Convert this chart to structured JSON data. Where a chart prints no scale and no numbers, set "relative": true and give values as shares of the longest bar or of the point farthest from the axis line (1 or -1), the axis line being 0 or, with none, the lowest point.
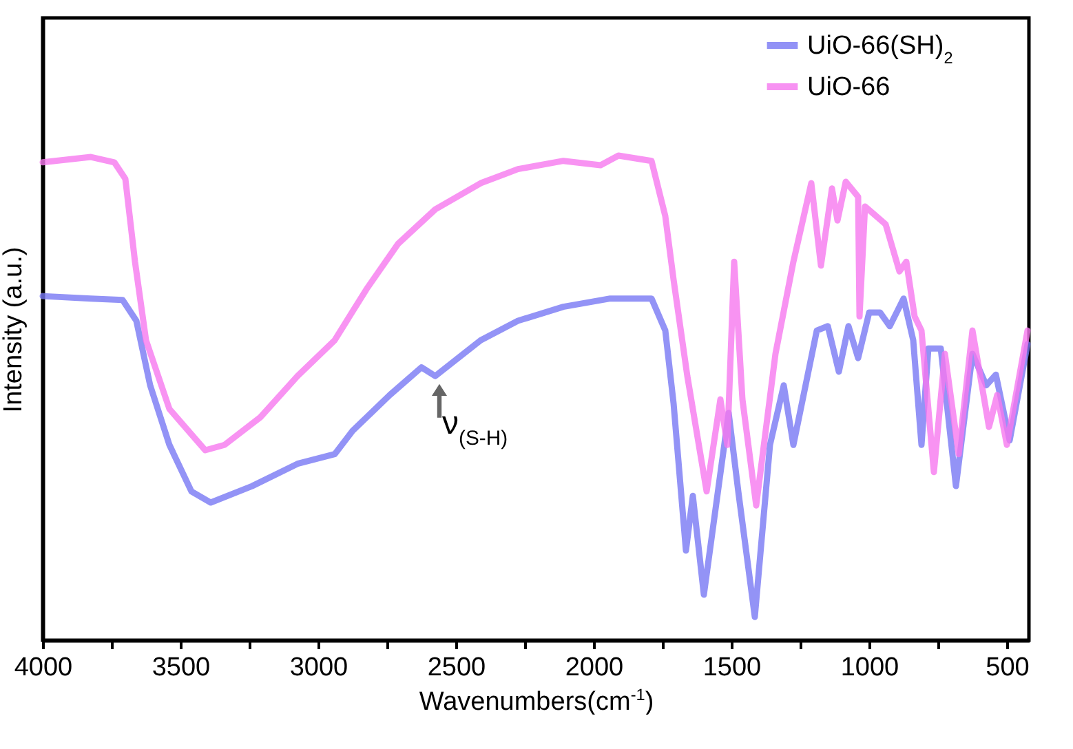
{
  "chart_data": {
    "type": "line",
    "relative": true,
    "xlabel": "Wavenumbers(cm$^{-1}$)",
    "ylabel": "Intensity (a.u.)",
    "xlim": [
      4000,
      420
    ],
    "xticks": [
      4000,
      {
        "value": 3750,
        "label": null
      },
      3500,
      {
        "value": 3250,
        "label": null
      },
      3000,
      {
        "value": 2750,
        "label": null
      },
      2500,
      {
        "value": 2250,
        "label": null
      },
      2000,
      {
        "value": 1750,
        "label": null
      },
      1500,
      {
        "value": 1250,
        "label": null
      },
      1000,
      {
        "value": 750,
        "label": null
      },
      500
    ],
    "legend": "top right",
    "grid": false,
    "marker": "none",
    "line_style": "solid",
    "annotations": [
      {
        "text": "ν$_{(S-H)}$",
        "x": 2560,
        "y": 0.545
      }
    ],
    "series": [
      {
        "name": "UiO-66(SH)$_{2}$",
        "color": "#7878f4",
        "x": [
          4000,
          3825,
          3710,
          3660,
          3610,
          3540,
          3460,
          3390,
          3240,
          3075,
          2940,
          2875,
          2740,
          2625,
          2575,
          2410,
          2275,
          2110,
          1940,
          1790,
          1740,
          1710,
          1665,
          1640,
          1600,
          1510,
          1475,
          1415,
          1360,
          1310,
          1275,
          1190,
          1150,
          1110,
          1075,
          1040,
          1000,
          960,
          925,
          875,
          840,
          810,
          785,
          740,
          685,
          625,
          575,
          540,
          490,
          425
        ],
        "values": [
          0.71,
          0.705,
          0.702,
          0.659,
          0.526,
          0.403,
          0.307,
          0.284,
          0.318,
          0.364,
          0.384,
          0.432,
          0.506,
          0.563,
          0.545,
          0.619,
          0.659,
          0.688,
          0.705,
          0.705,
          0.639,
          0.489,
          0.185,
          0.298,
          0.094,
          0.469,
          0.307,
          0.048,
          0.403,
          0.526,
          0.403,
          0.639,
          0.648,
          0.554,
          0.648,
          0.582,
          0.676,
          0.676,
          0.648,
          0.705,
          0.619,
          0.403,
          0.602,
          0.602,
          0.318,
          0.591,
          0.526,
          0.548,
          0.412,
          0.611
        ]
      },
      {
        "name": "UiO-66",
        "color": "#f678ef",
        "x": [
          4000,
          3825,
          3740,
          3700,
          3665,
          3625,
          3540,
          3410,
          3340,
          3210,
          3075,
          2940,
          2825,
          2710,
          2575,
          2410,
          2275,
          2110,
          1975,
          1910,
          1790,
          1740,
          1710,
          1660,
          1590,
          1540,
          1515,
          1490,
          1460,
          1410,
          1340,
          1275,
          1210,
          1175,
          1135,
          1115,
          1085,
          1040,
          1035,
          1015,
          940,
          890,
          865,
          835,
          810,
          765,
          725,
          675,
          625,
          565,
          535,
          500,
          425
        ],
        "values": [
          0.986,
          0.997,
          0.986,
          0.952,
          0.781,
          0.619,
          0.477,
          0.392,
          0.403,
          0.46,
          0.545,
          0.619,
          0.724,
          0.818,
          0.889,
          0.943,
          0.972,
          0.989,
          0.98,
          1,
          0.989,
          0.875,
          0.744,
          0.545,
          0.307,
          0.497,
          0.403,
          0.781,
          0.497,
          0.278,
          0.591,
          0.781,
          0.943,
          0.773,
          0.932,
          0.866,
          0.946,
          0.915,
          0.668,
          0.895,
          0.858,
          0.761,
          0.781,
          0.668,
          0.639,
          0.347,
          0.591,
          0.384,
          0.639,
          0.44,
          0.506,
          0.403,
          0.639
        ]
      }
    ]
  }
}
